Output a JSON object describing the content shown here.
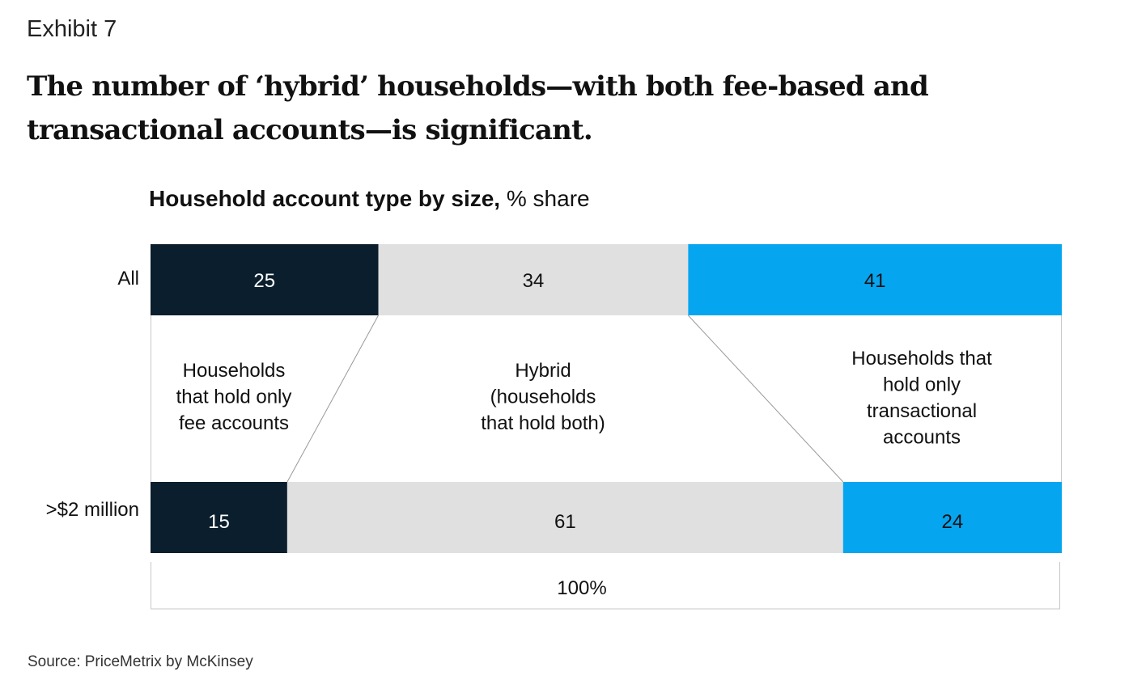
{
  "exhibit": "Exhibit 7",
  "headline": "The number of ‘hybrid’ households—with both fee-based and transactional accounts—is significant.",
  "chart_data": {
    "type": "bar",
    "stacked": true,
    "orientation": "horizontal",
    "title_bold": "Household account type by size,",
    "title_unit": "% share",
    "categories": [
      "All",
      ">$2 million"
    ],
    "series": [
      {
        "key": "fee",
        "values": [
          25,
          15
        ],
        "color": "#0a1e2d",
        "text_color": "#ffffff"
      },
      {
        "key": "hybrid",
        "values": [
          34,
          61
        ],
        "color": "#e0e0e0",
        "text_color": "#111111"
      },
      {
        "key": "transactional",
        "values": [
          41,
          24
        ],
        "color": "#06a5f0",
        "text_color": "#111111"
      }
    ],
    "segment_descriptions": [
      [
        "Households",
        "that hold only",
        "fee accounts"
      ],
      [
        "Hybrid",
        "(households",
        "that hold both)"
      ],
      [
        "Households that",
        "hold only",
        "transactional",
        "accounts"
      ]
    ],
    "total_label": "100%"
  },
  "source": "Source: PriceMetrix by McKinsey"
}
